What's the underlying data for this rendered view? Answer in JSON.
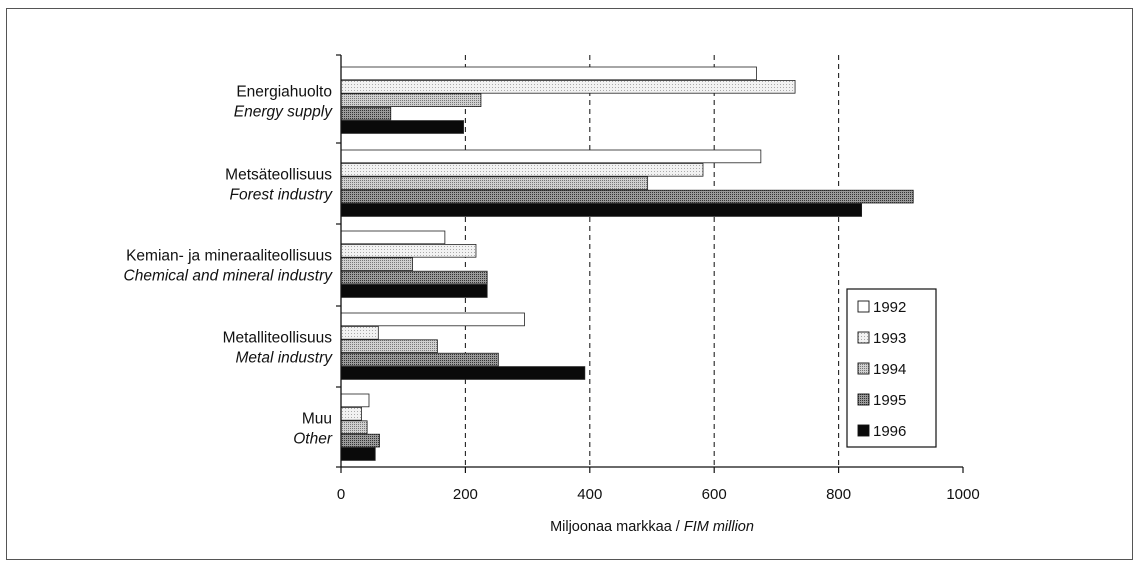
{
  "chart_data": {
    "type": "bar",
    "orientation": "horizontal",
    "categories": [
      {
        "fi": "Energiahuolto",
        "en": "Energy supply"
      },
      {
        "fi": "Metsäteollisuus",
        "en": "Forest industry"
      },
      {
        "fi": "Kemian- ja mineraaliteollisuus",
        "en": "Chemical and mineral industry"
      },
      {
        "fi": "Metalliteollisuus",
        "en": "Metal industry"
      },
      {
        "fi": "Muu",
        "en": "Other"
      }
    ],
    "series": [
      {
        "name": "1992",
        "values": [
          668,
          675,
          167,
          295,
          45
        ],
        "pattern": "white"
      },
      {
        "name": "1993",
        "values": [
          730,
          582,
          217,
          60,
          33
        ],
        "pattern": "light"
      },
      {
        "name": "1994",
        "values": [
          225,
          493,
          115,
          155,
          42
        ],
        "pattern": "medium"
      },
      {
        "name": "1995",
        "values": [
          80,
          920,
          235,
          253,
          62
        ],
        "pattern": "dark"
      },
      {
        "name": "1996",
        "values": [
          197,
          837,
          235,
          392,
          55
        ],
        "pattern": "black"
      }
    ],
    "xlabel_fi": "Miljoonaa markkaa / ",
    "xlabel_en": "FIM million",
    "xlim": [
      0,
      1000
    ],
    "xticks": [
      "0",
      "200",
      "400",
      "600",
      "800",
      "1000"
    ],
    "grid": "vertical dashed",
    "legend_position": "right"
  },
  "colors": {
    "frame": "#555555",
    "bar_stroke": "#222222",
    "light": "#eeeeee",
    "medium": "#b8b8b8",
    "dark": "#8a8a8a",
    "black": "#0a0a0a"
  }
}
